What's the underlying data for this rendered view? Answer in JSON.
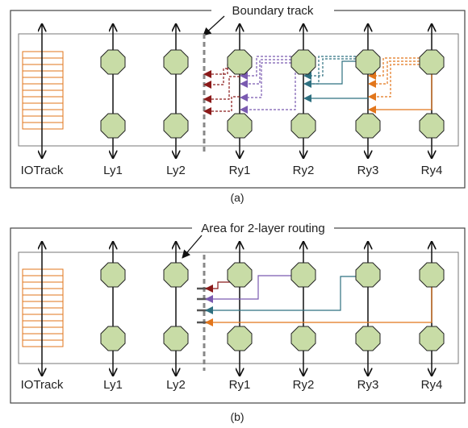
{
  "colors": {
    "frame": "#444444",
    "inner_box": "#777777",
    "io_track": "#e2761b",
    "node_fill": "#c8dca6",
    "node_stroke": "#222222",
    "boundary": "#888888",
    "dark_red": "#8b1a1a",
    "purple": "#7a5ab0",
    "teal": "#2e7080",
    "orange": "#e2761b"
  },
  "panel_a": {
    "callout": "Boundary track",
    "track_labels": [
      "IOTrack",
      "Ly1",
      "Ly2",
      "Ry1",
      "Ry2",
      "Ry3",
      "Ry4"
    ],
    "caption": "(a)"
  },
  "panel_b": {
    "callout": "Area for 2-layer routing",
    "track_labels": [
      "IOTrack",
      "Ly1",
      "Ly2",
      "Ry1",
      "Ry2",
      "Ry3",
      "Ry4"
    ],
    "caption": "(b)"
  }
}
